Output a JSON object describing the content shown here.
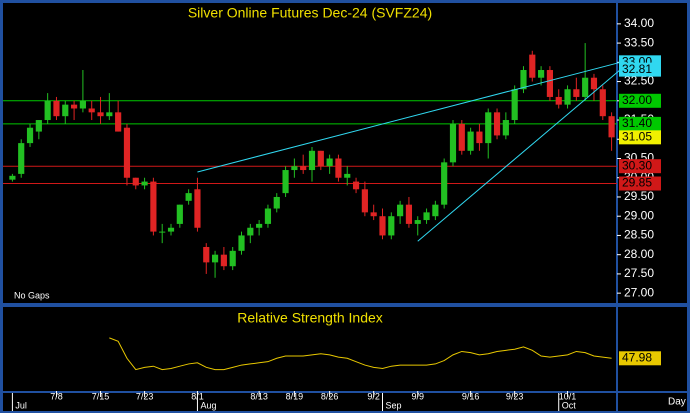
{
  "chart_data": {
    "type": "candlestick",
    "title": "Silver Online Futures Dec-24 (SVFZ24)",
    "note": "No Gaps",
    "x_unit": "Day",
    "up_color": "#22c022",
    "down_color": "#e02424",
    "open": [
      29.95,
      30.1,
      30.9,
      31.2,
      31.5,
      32.0,
      31.6,
      31.9,
      31.8,
      31.8,
      31.7,
      31.6,
      31.7,
      31.3,
      30.0,
      29.8,
      29.9,
      28.6,
      28.6,
      28.8,
      29.4,
      29.7,
      28.2,
      27.8,
      28.0,
      27.7,
      28.1,
      28.5,
      28.7,
      28.8,
      29.2,
      29.6,
      30.2,
      30.3,
      30.2,
      30.7,
      30.3,
      30.5,
      30.0,
      29.9,
      29.7,
      29.1,
      29.0,
      28.5,
      29.0,
      29.3,
      28.8,
      28.9,
      29.0,
      29.3,
      30.4,
      31.4,
      30.7,
      31.2,
      30.9,
      31.7,
      31.1,
      31.5,
      32.3,
      33.2,
      32.6,
      32.8,
      32.1,
      31.9,
      32.3,
      32.1,
      32.6,
      32.3,
      31.6
    ],
    "high": [
      30.1,
      31.0,
      31.4,
      31.5,
      32.2,
      32.1,
      32.0,
      32.0,
      32.8,
      32.0,
      32.1,
      32.2,
      32.0,
      31.4,
      30.0,
      30.0,
      30.0,
      28.8,
      28.8,
      29.3,
      29.7,
      30.0,
      28.3,
      28.1,
      28.2,
      28.2,
      28.6,
      28.8,
      28.9,
      29.3,
      29.6,
      30.3,
      30.5,
      30.6,
      30.8,
      30.7,
      30.6,
      30.6,
      30.3,
      30.0,
      29.9,
      29.3,
      29.2,
      29.1,
      29.4,
      29.5,
      29.0,
      29.2,
      29.4,
      30.5,
      31.5,
      31.5,
      31.3,
      31.4,
      31.8,
      31.8,
      31.7,
      32.4,
      32.9,
      33.3,
      32.9,
      32.9,
      32.3,
      32.4,
      32.6,
      33.5,
      32.7,
      32.4,
      31.7
    ],
    "low": [
      29.9,
      30.0,
      30.8,
      31.0,
      31.4,
      31.5,
      31.4,
      31.5,
      31.7,
      31.5,
      31.4,
      31.5,
      31.2,
      29.8,
      29.7,
      29.7,
      28.5,
      28.3,
      28.5,
      28.7,
      29.3,
      28.6,
      27.5,
      27.4,
      27.6,
      27.6,
      28.0,
      28.3,
      28.5,
      28.7,
      29.1,
      29.5,
      30.0,
      30.1,
      29.9,
      30.2,
      30.1,
      29.9,
      29.8,
      29.6,
      29.0,
      28.9,
      28.4,
      28.4,
      28.8,
      28.7,
      28.5,
      28.8,
      28.9,
      29.2,
      30.3,
      30.6,
      30.6,
      30.7,
      30.5,
      31.0,
      31.0,
      31.4,
      32.2,
      32.5,
      32.4,
      32.0,
      31.8,
      31.8,
      32.0,
      32.0,
      32.0,
      31.5,
      30.7
    ],
    "close": [
      30.05,
      30.9,
      31.3,
      31.5,
      32.0,
      31.6,
      31.9,
      31.8,
      32.0,
      31.7,
      31.6,
      31.7,
      31.2,
      30.0,
      29.8,
      29.9,
      28.6,
      28.6,
      28.7,
      29.3,
      29.6,
      28.7,
      27.8,
      28.0,
      27.7,
      28.1,
      28.5,
      28.7,
      28.8,
      29.2,
      29.5,
      30.2,
      30.3,
      30.2,
      30.7,
      30.3,
      30.5,
      30.0,
      30.1,
      29.7,
      29.1,
      29.0,
      28.5,
      29.0,
      29.3,
      28.8,
      28.9,
      29.1,
      29.3,
      30.4,
      31.4,
      30.7,
      31.2,
      30.9,
      31.7,
      31.1,
      31.5,
      32.3,
      32.8,
      32.6,
      32.8,
      32.1,
      31.9,
      32.3,
      32.1,
      32.6,
      32.3,
      31.6,
      31.05
    ],
    "ylim": [
      26.77,
      34.49
    ],
    "yticks": [
      {
        "value": 27,
        "label": "27.00"
      },
      {
        "value": 27.5,
        "label": "27.50"
      },
      {
        "value": 28,
        "label": "28.00"
      },
      {
        "value": 28.5,
        "label": "28.50"
      },
      {
        "value": 29,
        "label": "29.00"
      },
      {
        "value": 29.5,
        "label": "29.50"
      },
      {
        "value": 30,
        "label": "30.00"
      },
      {
        "value": 30.5,
        "label": "30.50"
      },
      {
        "value": 31,
        "label": "31.00"
      },
      {
        "value": 31.5,
        "label": "31.50"
      },
      {
        "value": 32,
        "label": "32.00"
      },
      {
        "value": 32.5,
        "label": "32.50"
      },
      {
        "value": 33,
        "label": "33.00"
      },
      {
        "value": 33.5,
        "label": "33.50"
      },
      {
        "value": 34,
        "label": "34.00"
      }
    ],
    "xticks": [
      {
        "value": 5,
        "label": "7/8"
      },
      {
        "value": 10,
        "label": "7/15"
      },
      {
        "value": 15,
        "label": "7/23"
      },
      {
        "value": 21,
        "label": "8/1"
      },
      {
        "value": 28,
        "label": "8/13"
      },
      {
        "value": 32,
        "label": "8/19"
      },
      {
        "value": 36,
        "label": "8/26"
      },
      {
        "value": 41,
        "label": "9/2"
      },
      {
        "value": 46,
        "label": "9/9"
      },
      {
        "value": 52,
        "label": "9/16"
      },
      {
        "value": 57,
        "label": "9/23"
      },
      {
        "value": 63,
        "label": "10/1"
      }
    ],
    "months": [
      {
        "value": 0,
        "label": "Jul"
      },
      {
        "value": 21,
        "label": "Aug"
      },
      {
        "value": 42,
        "label": "Sep"
      },
      {
        "value": 62,
        "label": "Oct"
      }
    ],
    "hlines": [
      {
        "value": 32,
        "label": "32.00",
        "color": "#00c800"
      },
      {
        "value": 31.4,
        "label": "31.40",
        "color": "#00c800"
      },
      {
        "value": 30.3,
        "label": "30.30",
        "color": "#d01818"
      },
      {
        "value": 29.85,
        "label": "29.85",
        "color": "#d01818"
      }
    ],
    "trendlines": [
      {
        "x": [
          21,
          69
        ],
        "y": [
          30.15,
          33.0
        ],
        "label": "33.00",
        "color": "#30d8f0"
      },
      {
        "x": [
          46,
          69
        ],
        "y": [
          28.35,
          32.81
        ],
        "label": "32.81",
        "color": "#30d8f0"
      }
    ],
    "last_price": {
      "value": 31.05,
      "label": "31.05",
      "color": "#f0f000"
    },
    "rsi": {
      "title": "Relative Strength Index",
      "color": "#e8c800",
      "ylim": [
        20,
        80
      ],
      "values": [
        null,
        null,
        null,
        null,
        null,
        null,
        null,
        null,
        null,
        null,
        null,
        66,
        63,
        48,
        38,
        40,
        41,
        38,
        39,
        41,
        43,
        44,
        40,
        38,
        38,
        40,
        42,
        43,
        44,
        45,
        48,
        50,
        50,
        50,
        51,
        52,
        51,
        49,
        48,
        45,
        42,
        40,
        39,
        41,
        42,
        42,
        42,
        42,
        43,
        46,
        51,
        54,
        53,
        51,
        52,
        54,
        55,
        56,
        58,
        55,
        50,
        49,
        50,
        51,
        54,
        53,
        50,
        49,
        47.98
      ]
    }
  }
}
